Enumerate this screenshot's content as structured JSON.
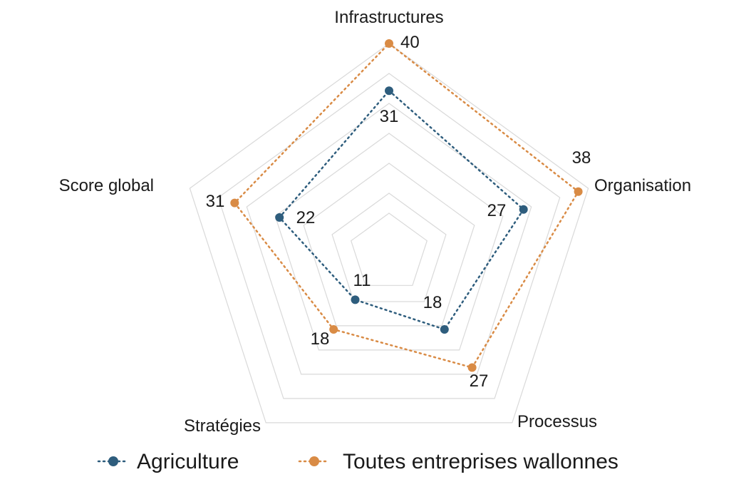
{
  "chart_data": {
    "type": "radar",
    "title": "",
    "axes": [
      "Infrastructures",
      "Organisation",
      "Processus",
      "Stratégies",
      "Score global"
    ],
    "range": [
      0,
      40
    ],
    "grid_levels": [
      8,
      12,
      18,
      24,
      30,
      36,
      42
    ],
    "series": [
      {
        "name": "Agriculture",
        "color": "#2e5d7d",
        "values": [
          31,
          27,
          18,
          11,
          22
        ],
        "labels": [
          "31",
          "27",
          "18",
          "11",
          "22"
        ]
      },
      {
        "name": "Toutes entreprises wallonnes",
        "color": "#d98b45",
        "values": [
          40,
          38,
          27,
          18,
          31
        ],
        "labels": [
          "40",
          "38",
          "27",
          "18",
          "31"
        ]
      }
    ],
    "legend_position": "bottom"
  }
}
